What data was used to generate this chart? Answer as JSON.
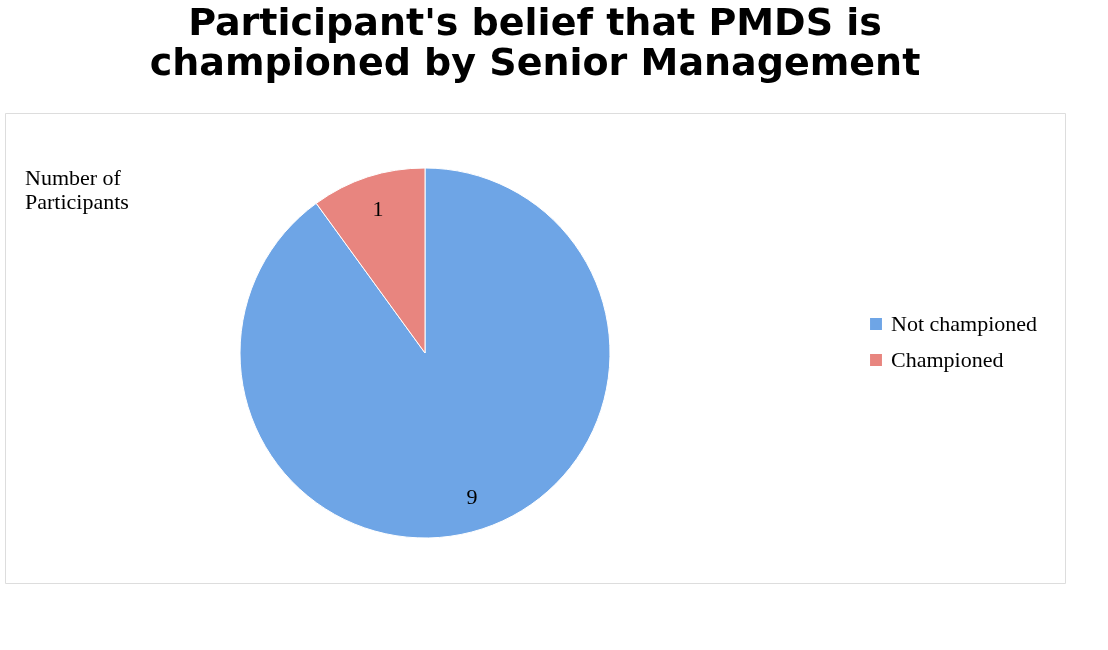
{
  "chart_data": {
    "type": "pie",
    "title": "Participant's belief that PMDS is\nchampioned by Senior Management",
    "categories": [
      "Not championed",
      "Championed"
    ],
    "values": [
      9,
      1
    ],
    "colors": [
      "#6ea5e6",
      "#e8857f"
    ],
    "data_labels": true,
    "legend": "right",
    "annotations": [
      "Number of\nParticipants"
    ]
  }
}
